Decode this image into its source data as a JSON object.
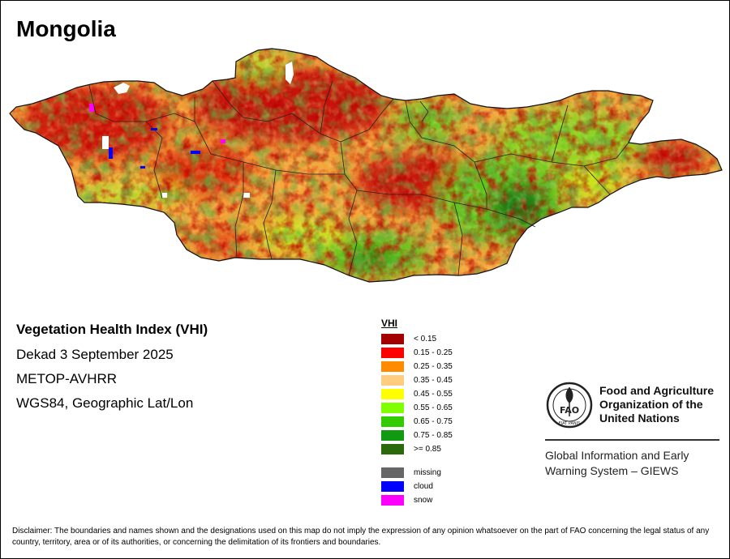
{
  "map": {
    "title": "Mongolia",
    "country": "Mongolia",
    "index": "VHI"
  },
  "info": {
    "title": "Vegetation Health Index (VHI)",
    "period": "Dekad 3 September 2025",
    "sensor": "METOP-AVHRR",
    "projection": "WGS84, Geographic Lat/Lon"
  },
  "legend": {
    "title": "VHI",
    "classes": [
      {
        "label": "< 0.15",
        "color": "#a50000"
      },
      {
        "label": "0.15 - 0.25",
        "color": "#ff0000"
      },
      {
        "label": "0.25 - 0.35",
        "color": "#ff8c00"
      },
      {
        "label": "0.35 - 0.45",
        "color": "#ffcc80"
      },
      {
        "label": "0.45 - 0.55",
        "color": "#ffff00"
      },
      {
        "label": "0.55 - 0.65",
        "color": "#80ff00"
      },
      {
        "label": "0.65 - 0.75",
        "color": "#33cc00"
      },
      {
        "label": "0.75 - 0.85",
        "color": "#119911"
      },
      {
        "label": ">= 0.85",
        "color": "#2a6a0c"
      }
    ],
    "special": [
      {
        "label": "missing",
        "color": "#666666"
      },
      {
        "label": "cloud",
        "color": "#0000ff"
      },
      {
        "label": "snow",
        "color": "#ff00ff"
      }
    ]
  },
  "fao": {
    "name_line1": "Food and Agriculture",
    "name_line2": "Organization of the",
    "name_line3": "United Nations",
    "logo_text": "FAO",
    "logo_motto": "FIAT PANIS",
    "giews_line1": "Global Information and Early",
    "giews_line2": "Warning System – GIEWS"
  },
  "disclaimer": "Disclaimer: The boundaries and names shown and the designations used on this map do not imply the expression of any opinion whatsoever on the part of FAO concerning the legal status of any country, territory, area or of its authorities, or concerning the delimitation of its frontiers and boundaries."
}
